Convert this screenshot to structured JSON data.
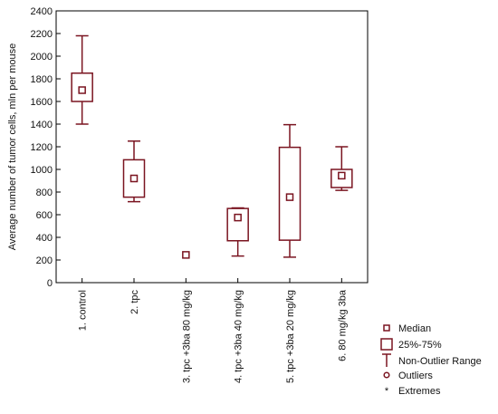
{
  "colors": {
    "accent": "#7a1420",
    "axis": "#000000",
    "text": "#111111"
  },
  "chart_data": {
    "type": "box",
    "ylabel": "Average number of tumor cells, mln per mouse",
    "xlabel": "",
    "ylim": [
      0,
      2400
    ],
    "yticks": [
      0,
      200,
      400,
      600,
      800,
      1000,
      1200,
      1400,
      1600,
      1800,
      2000,
      2200,
      2400
    ],
    "grid": false,
    "legend_position": "bottom-right",
    "categories": [
      "1. control",
      "2. tpc",
      "3. tpc +3ba 80 mg/kg",
      "4. tpc +3ba 40 mg/kg",
      "5. tpc +3ba 20 mg/kg",
      "6. 80 mg/kg 3ba"
    ],
    "boxes": [
      {
        "median": 1700,
        "q1": 1600,
        "q3": 1850,
        "min": 1400,
        "max": 2180
      },
      {
        "median": 920,
        "q1": 755,
        "q3": 1085,
        "min": 715,
        "max": 1250
      },
      {
        "median": 245,
        "q1": 245,
        "q3": 245,
        "min": 245,
        "max": 245
      },
      {
        "median": 575,
        "q1": 370,
        "q3": 655,
        "min": 235,
        "max": 660
      },
      {
        "median": 755,
        "q1": 375,
        "q3": 1195,
        "min": 225,
        "max": 1395
      },
      {
        "median": 945,
        "q1": 840,
        "q3": 1000,
        "min": 815,
        "max": 1200
      }
    ],
    "legend": [
      {
        "key": "median",
        "label": "Median"
      },
      {
        "key": "box",
        "label": "25%-75%"
      },
      {
        "key": "range",
        "label": "Non-Outlier Range"
      },
      {
        "key": "outlier",
        "label": "Outliers"
      },
      {
        "key": "extreme",
        "label": "Extremes"
      }
    ]
  }
}
